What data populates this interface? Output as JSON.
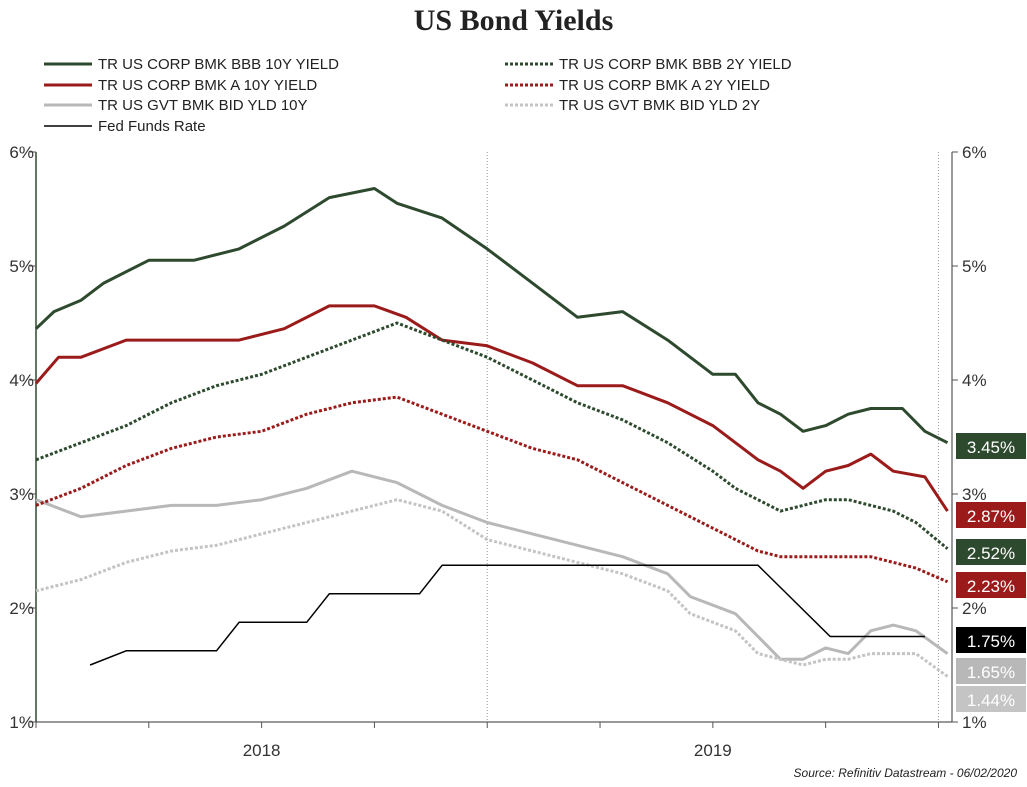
{
  "chart_data": {
    "type": "line",
    "title": "US Bond Yields",
    "source": "Source: Refinitiv Datastream - 06/02/2020",
    "y_axis": {
      "min": 1,
      "max": 6,
      "ticks": [
        "1%",
        "2%",
        "3%",
        "4%",
        "5%",
        "6%"
      ]
    },
    "x_axis": {
      "year_labels": [
        {
          "label": "2018",
          "at": 0.5
        },
        {
          "label": "2019",
          "at": 1.5
        }
      ]
    },
    "series": [
      {
        "name": "TR US CORP BMK BBB 10Y YIELD",
        "color": "#2e4a2e",
        "style": "solid",
        "last_label": "3.45%",
        "points": [
          [
            0,
            4.45
          ],
          [
            0.04,
            4.6
          ],
          [
            0.1,
            4.7
          ],
          [
            0.15,
            4.85
          ],
          [
            0.25,
            5.05
          ],
          [
            0.35,
            5.05
          ],
          [
            0.45,
            5.15
          ],
          [
            0.55,
            5.35
          ],
          [
            0.65,
            5.6
          ],
          [
            0.75,
            5.68
          ],
          [
            0.8,
            5.55
          ],
          [
            0.9,
            5.42
          ],
          [
            1.0,
            5.15
          ],
          [
            1.1,
            4.85
          ],
          [
            1.2,
            4.55
          ],
          [
            1.3,
            4.6
          ],
          [
            1.4,
            4.35
          ],
          [
            1.5,
            4.05
          ],
          [
            1.55,
            4.05
          ],
          [
            1.6,
            3.8
          ],
          [
            1.65,
            3.7
          ],
          [
            1.7,
            3.55
          ],
          [
            1.75,
            3.6
          ],
          [
            1.8,
            3.7
          ],
          [
            1.85,
            3.75
          ],
          [
            1.92,
            3.75
          ],
          [
            1.97,
            3.55
          ],
          [
            2.02,
            3.45
          ]
        ]
      },
      {
        "name": "TR US CORP BMK A 10Y YIELD",
        "color": "#9b1b1b",
        "style": "solid",
        "last_label": "2.87%",
        "points": [
          [
            0,
            3.97
          ],
          [
            0.05,
            4.2
          ],
          [
            0.1,
            4.2
          ],
          [
            0.2,
            4.35
          ],
          [
            0.3,
            4.35
          ],
          [
            0.45,
            4.35
          ],
          [
            0.55,
            4.45
          ],
          [
            0.65,
            4.65
          ],
          [
            0.75,
            4.65
          ],
          [
            0.82,
            4.55
          ],
          [
            0.9,
            4.35
          ],
          [
            1.0,
            4.3
          ],
          [
            1.1,
            4.15
          ],
          [
            1.2,
            3.95
          ],
          [
            1.3,
            3.95
          ],
          [
            1.4,
            3.8
          ],
          [
            1.5,
            3.6
          ],
          [
            1.55,
            3.45
          ],
          [
            1.6,
            3.3
          ],
          [
            1.65,
            3.2
          ],
          [
            1.7,
            3.05
          ],
          [
            1.75,
            3.2
          ],
          [
            1.8,
            3.25
          ],
          [
            1.85,
            3.35
          ],
          [
            1.9,
            3.2
          ],
          [
            1.97,
            3.15
          ],
          [
            2.02,
            2.85
          ]
        ]
      },
      {
        "name": "TR US GVT BMK BID YLD 10Y",
        "color": "#b8b8b8",
        "style": "solid",
        "last_label": "1.65%",
        "points": [
          [
            0,
            2.95
          ],
          [
            0.1,
            2.8
          ],
          [
            0.2,
            2.85
          ],
          [
            0.3,
            2.9
          ],
          [
            0.4,
            2.9
          ],
          [
            0.5,
            2.95
          ],
          [
            0.6,
            3.05
          ],
          [
            0.7,
            3.2
          ],
          [
            0.8,
            3.1
          ],
          [
            0.9,
            2.9
          ],
          [
            1.0,
            2.75
          ],
          [
            1.1,
            2.65
          ],
          [
            1.2,
            2.55
          ],
          [
            1.3,
            2.45
          ],
          [
            1.4,
            2.3
          ],
          [
            1.45,
            2.1
          ],
          [
            1.55,
            1.95
          ],
          [
            1.6,
            1.75
          ],
          [
            1.65,
            1.55
          ],
          [
            1.7,
            1.55
          ],
          [
            1.75,
            1.65
          ],
          [
            1.8,
            1.6
          ],
          [
            1.85,
            1.8
          ],
          [
            1.9,
            1.85
          ],
          [
            1.95,
            1.8
          ],
          [
            2.02,
            1.6
          ]
        ]
      },
      {
        "name": "TR US CORP BMK BBB 2Y YIELD",
        "color": "#2e4a2e",
        "style": "dotted",
        "last_label": "2.52%",
        "points": [
          [
            0,
            3.3
          ],
          [
            0.1,
            3.45
          ],
          [
            0.2,
            3.6
          ],
          [
            0.3,
            3.8
          ],
          [
            0.4,
            3.95
          ],
          [
            0.5,
            4.05
          ],
          [
            0.6,
            4.2
          ],
          [
            0.7,
            4.35
          ],
          [
            0.8,
            4.5
          ],
          [
            0.9,
            4.35
          ],
          [
            1.0,
            4.2
          ],
          [
            1.1,
            4.0
          ],
          [
            1.2,
            3.8
          ],
          [
            1.3,
            3.65
          ],
          [
            1.4,
            3.45
          ],
          [
            1.5,
            3.2
          ],
          [
            1.55,
            3.05
          ],
          [
            1.6,
            2.95
          ],
          [
            1.65,
            2.85
          ],
          [
            1.7,
            2.9
          ],
          [
            1.75,
            2.95
          ],
          [
            1.8,
            2.95
          ],
          [
            1.85,
            2.9
          ],
          [
            1.9,
            2.85
          ],
          [
            1.95,
            2.75
          ],
          [
            2.02,
            2.52
          ]
        ]
      },
      {
        "name": "TR US CORP BMK A 2Y YIELD",
        "color": "#9b1b1b",
        "style": "dotted",
        "last_label": "2.23%",
        "points": [
          [
            0,
            2.9
          ],
          [
            0.1,
            3.05
          ],
          [
            0.2,
            3.25
          ],
          [
            0.3,
            3.4
          ],
          [
            0.4,
            3.5
          ],
          [
            0.5,
            3.55
          ],
          [
            0.6,
            3.7
          ],
          [
            0.7,
            3.8
          ],
          [
            0.8,
            3.85
          ],
          [
            0.9,
            3.7
          ],
          [
            1.0,
            3.55
          ],
          [
            1.1,
            3.4
          ],
          [
            1.2,
            3.3
          ],
          [
            1.3,
            3.1
          ],
          [
            1.4,
            2.9
          ],
          [
            1.5,
            2.7
          ],
          [
            1.55,
            2.6
          ],
          [
            1.6,
            2.5
          ],
          [
            1.65,
            2.45
          ],
          [
            1.7,
            2.45
          ],
          [
            1.75,
            2.45
          ],
          [
            1.8,
            2.45
          ],
          [
            1.85,
            2.45
          ],
          [
            1.9,
            2.4
          ],
          [
            1.95,
            2.35
          ],
          [
            2.02,
            2.23
          ]
        ]
      },
      {
        "name": "TR US GVT BMK BID YLD 2Y",
        "color": "#c4c4c4",
        "style": "dotted",
        "last_label": "1.44%",
        "points": [
          [
            0,
            2.15
          ],
          [
            0.1,
            2.25
          ],
          [
            0.2,
            2.4
          ],
          [
            0.3,
            2.5
          ],
          [
            0.4,
            2.55
          ],
          [
            0.5,
            2.65
          ],
          [
            0.6,
            2.75
          ],
          [
            0.7,
            2.85
          ],
          [
            0.8,
            2.95
          ],
          [
            0.9,
            2.85
          ],
          [
            1.0,
            2.6
          ],
          [
            1.1,
            2.5
          ],
          [
            1.2,
            2.4
          ],
          [
            1.3,
            2.3
          ],
          [
            1.4,
            2.15
          ],
          [
            1.45,
            1.95
          ],
          [
            1.55,
            1.8
          ],
          [
            1.6,
            1.6
          ],
          [
            1.65,
            1.55
          ],
          [
            1.7,
            1.5
          ],
          [
            1.75,
            1.55
          ],
          [
            1.8,
            1.55
          ],
          [
            1.85,
            1.6
          ],
          [
            1.9,
            1.6
          ],
          [
            1.95,
            1.6
          ],
          [
            2.02,
            1.4
          ]
        ]
      },
      {
        "name": "Fed Funds Rate",
        "color": "#000000",
        "style": "thin",
        "last_label": "1.75%",
        "points": [
          [
            0.12,
            1.5
          ],
          [
            0.2,
            1.625
          ],
          [
            0.4,
            1.625
          ],
          [
            0.45,
            1.875
          ],
          [
            0.6,
            1.875
          ],
          [
            0.65,
            2.125
          ],
          [
            0.85,
            2.125
          ],
          [
            0.9,
            2.375
          ],
          [
            1.12,
            2.375
          ],
          [
            1.2,
            2.375
          ],
          [
            1.3,
            2.375
          ],
          [
            1.5,
            2.375
          ],
          [
            1.55,
            2.375
          ],
          [
            1.6,
            2.375
          ],
          [
            1.76,
            1.75
          ],
          [
            1.97,
            1.75
          ]
        ]
      }
    ],
    "label_colors": [
      "#2e4a2e",
      "#9b1b1b",
      "#b8b8b8",
      "#2e4a2e",
      "#9b1b1b",
      "#c4c4c4",
      "#000000"
    ]
  }
}
